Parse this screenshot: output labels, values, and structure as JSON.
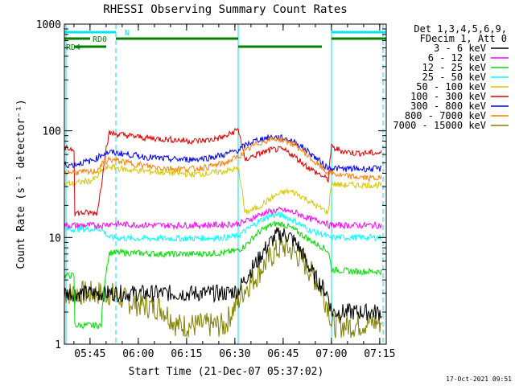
{
  "chart_data": {
    "type": "line",
    "title": "RHESSI Observing Summary Count Rates",
    "xlabel": "Start Time (21-Dec-07 05:37:02)",
    "ylabel": "Count Rate (s⁻¹ detector⁻¹)",
    "x_unit": "minutes after 05:37:02",
    "xlim": [
      0,
      100
    ],
    "ylim": [
      1,
      1000
    ],
    "yscale": "log",
    "x_ticks": [
      {
        "x": 7.97,
        "label": "05:45"
      },
      {
        "x": 22.97,
        "label": "06:00"
      },
      {
        "x": 37.97,
        "label": "06:15"
      },
      {
        "x": 52.97,
        "label": "06:30"
      },
      {
        "x": 67.97,
        "label": "06:45"
      },
      {
        "x": 82.97,
        "label": "07:00"
      },
      {
        "x": 97.97,
        "label": "07:15"
      }
    ],
    "y_ticks": [
      {
        "y": 1,
        "label": "1"
      },
      {
        "y": 10,
        "label": "10"
      },
      {
        "y": 100,
        "label": "100"
      },
      {
        "y": 1000,
        "label": "1000"
      }
    ],
    "legend": {
      "placement": "right",
      "header": [
        "Det 1,3,4,5,6,9,",
        "FDecim 1, Att 0"
      ],
      "entries": [
        {
          "label": "3 - 6 keV",
          "color": "#000000"
        },
        {
          "label": "6 - 12 keV",
          "color": "#ff00ff"
        },
        {
          "label": "12 - 25 keV",
          "color": "#00dd00"
        },
        {
          "label": "25 - 50 keV",
          "color": "#00ffff"
        },
        {
          "label": "50 - 100 keV",
          "color": "#d8c800"
        },
        {
          "label": "100 - 300 keV",
          "color": "#dd0000"
        },
        {
          "label": "300 - 800 keV",
          "color": "#0000ee"
        },
        {
          "label": "800 - 7000 keV",
          "color": "#ff8000"
        },
        {
          "label": "7000 - 15000 keV",
          "color": "#808000"
        }
      ]
    },
    "series": [
      {
        "band": "7000 - 15000 keV",
        "color": "#808000",
        "x": [
          0,
          2,
          5,
          7,
          10,
          11,
          11.5,
          14,
          20,
          25,
          30,
          35,
          40,
          45,
          50,
          54,
          56,
          58,
          60,
          62,
          64,
          66,
          68,
          70,
          72,
          74,
          76,
          78,
          80,
          81,
          82,
          83,
          85,
          90,
          95,
          98
        ],
        "y": [
          3,
          3,
          3,
          3,
          3,
          3,
          3,
          3,
          2.5,
          2.3,
          2.2,
          1.5,
          1.5,
          1.5,
          1.5,
          2.5,
          3.3,
          3.8,
          4.5,
          5.5,
          6.5,
          7.5,
          8.2,
          7.8,
          7.0,
          6,
          5,
          4,
          3.2,
          2.6,
          2.3,
          1.5,
          1.5,
          1.5,
          1.6,
          1.6
        ]
      },
      {
        "band": "3 - 6 keV",
        "color": "#000000",
        "x": [
          0,
          5,
          10,
          11.5,
          14,
          20,
          30,
          40,
          50,
          54,
          56,
          58,
          60,
          62,
          64,
          66,
          68,
          70,
          72,
          74,
          76,
          78,
          80,
          81,
          82,
          83,
          90,
          98
        ],
        "y": [
          3,
          3,
          3,
          3,
          3,
          3,
          3,
          3,
          3,
          3.2,
          4.0,
          5.0,
          6.0,
          7.5,
          9.0,
          10.5,
          10.8,
          10.2,
          8.8,
          7.0,
          5.3,
          4.2,
          3.5,
          3.2,
          2.8,
          2.0,
          2.0,
          2.0
        ]
      },
      {
        "band": "12 - 25 keV",
        "color": "#00dd00",
        "x": [
          0,
          3,
          3.2,
          10,
          11.5,
          14,
          20,
          30,
          40,
          50,
          54,
          56,
          58,
          60,
          62,
          64,
          66,
          68,
          70,
          72,
          74,
          76,
          78,
          80,
          81,
          82,
          83,
          90,
          98
        ],
        "y": [
          4.4,
          4.4,
          1.5,
          1.5,
          1.5,
          7.2,
          7.2,
          7.0,
          7.0,
          7.2,
          7.6,
          8.3,
          9.5,
          11,
          12,
          13,
          13.5,
          13.3,
          12.5,
          11.5,
          10.5,
          9.6,
          8.8,
          8.2,
          7.8,
          7.4,
          5.0,
          4.8,
          4.8
        ]
      },
      {
        "band": "25 - 50 keV",
        "color": "#00ffff",
        "x": [
          0,
          3,
          3.2,
          10,
          11.5,
          14,
          20,
          30,
          40,
          50,
          54,
          56,
          58,
          60,
          62,
          64,
          66,
          68,
          70,
          72,
          74,
          76,
          78,
          80,
          81,
          82,
          83,
          90,
          98
        ],
        "y": [
          12,
          12,
          12,
          12,
          12,
          10,
          9.8,
          9.8,
          9.8,
          10,
          10.3,
          11.5,
          12.5,
          14,
          15,
          16,
          16.3,
          16,
          15,
          14,
          12.8,
          11.8,
          11.2,
          10.8,
          10.5,
          10,
          10,
          10,
          10
        ]
      },
      {
        "band": "6 - 12 keV",
        "color": "#ff00ff",
        "x": [
          0,
          11.5,
          14,
          20,
          30,
          40,
          50,
          54,
          56,
          58,
          60,
          62,
          64,
          66,
          68,
          70,
          72,
          74,
          76,
          78,
          80,
          81,
          82
        ],
        "y": [
          13,
          13,
          13.5,
          13.2,
          13,
          13,
          13.2,
          13.5,
          14,
          15,
          16,
          17,
          17.5,
          18,
          18,
          17.5,
          17,
          16,
          15,
          14.5,
          14.2,
          14,
          13
        ]
      },
      {
        "band": "50 - 100 keV",
        "color": "#d8c800",
        "x": [
          0,
          3,
          5,
          8,
          10,
          11.5,
          14,
          20,
          30,
          40,
          45,
          50,
          54,
          56,
          58,
          60,
          62,
          64,
          66,
          68,
          70,
          72,
          74,
          76,
          78,
          80,
          81,
          82,
          83,
          86,
          90,
          95,
          98
        ],
        "y": [
          32,
          32,
          33,
          34,
          36,
          42,
          46,
          43,
          41,
          39,
          40,
          42,
          44,
          17,
          18,
          19,
          21,
          23,
          25,
          26.5,
          27,
          26,
          24,
          22,
          20,
          18.5,
          18,
          17,
          32,
          31,
          31,
          31,
          31
        ]
      },
      {
        "band": "100 - 300 keV",
        "color": "#dd0000",
        "x": [
          0,
          3,
          3.2,
          10,
          10.2,
          11.5,
          14,
          20,
          25,
          30,
          35,
          40,
          45,
          50,
          54,
          56,
          58,
          60,
          62,
          64,
          66,
          68,
          70,
          72,
          74,
          76,
          78,
          80,
          81,
          82,
          83,
          86,
          90,
          95,
          98
        ],
        "y": [
          68,
          68,
          17,
          17,
          17,
          30,
          95,
          90,
          86,
          84,
          82,
          80,
          82,
          88,
          103,
          53,
          57,
          60,
          63,
          66,
          67,
          66,
          62,
          56,
          50,
          45,
          41,
          38,
          36,
          35,
          70,
          65,
          62,
          62,
          62
        ]
      },
      {
        "band": "300 - 800 keV",
        "color": "#0000ee",
        "x": [
          0,
          3,
          5,
          8,
          10,
          11.5,
          14,
          20,
          25,
          30,
          35,
          40,
          45,
          50,
          54,
          56,
          58,
          60,
          62,
          64,
          66,
          68,
          70,
          72,
          74,
          76,
          78,
          80,
          81,
          82,
          83,
          86,
          90,
          95,
          98
        ],
        "y": [
          48,
          48,
          50,
          52,
          55,
          60,
          63,
          60,
          57,
          55,
          54,
          54,
          56,
          60,
          66,
          72,
          78,
          82,
          85,
          87,
          87,
          85,
          82,
          77,
          70,
          63,
          56,
          50,
          47,
          45,
          45,
          44,
          44,
          44,
          44
        ]
      },
      {
        "band": "800 - 7000 keV",
        "color": "#ff8000",
        "x": [
          0,
          3,
          5,
          8,
          10,
          11.5,
          14,
          20,
          25,
          30,
          35,
          40,
          45,
          50,
          54,
          56,
          58,
          60,
          62,
          64,
          66,
          68,
          70,
          72,
          74,
          76,
          78,
          80,
          81,
          82,
          83,
          86,
          90,
          95,
          98
        ],
        "y": [
          41,
          41,
          41,
          41,
          42,
          48,
          54,
          50,
          47,
          45,
          44,
          44,
          46,
          50,
          57,
          63,
          70,
          76,
          80,
          83,
          84,
          82,
          78,
          72,
          65,
          57,
          50,
          45,
          42,
          40,
          40,
          38,
          37,
          36,
          36
        ]
      }
    ],
    "status_bars": [
      {
        "label": "N",
        "color": "#00e5ee",
        "segments": [
          [
            0,
            16
          ],
          [
            83,
            100
          ]
        ],
        "level": 0
      },
      {
        "label": "RD0",
        "color": "#008000",
        "segments": [
          [
            0,
            8
          ],
          [
            16,
            54
          ],
          [
            83,
            100
          ]
        ],
        "level": 1
      },
      {
        "label": "RD4",
        "color": "#008000",
        "segments": [
          [
            3,
            13
          ],
          [
            54,
            80
          ]
        ],
        "level": 2
      }
    ],
    "vertical_markers": [
      {
        "x": 0.5,
        "color": "#00e5ee",
        "style": "solid"
      },
      {
        "x": 16,
        "color": "#00e5ee",
        "style": "dashed"
      },
      {
        "x": 54,
        "color": "#00e5ee",
        "style": "solid"
      },
      {
        "x": 83,
        "color": "#00e5ee",
        "style": "solid"
      },
      {
        "x": 99,
        "color": "#00e5ee",
        "style": "dashed"
      }
    ],
    "timestamp": "17-Oct-2021 09:51",
    "grid": false
  }
}
